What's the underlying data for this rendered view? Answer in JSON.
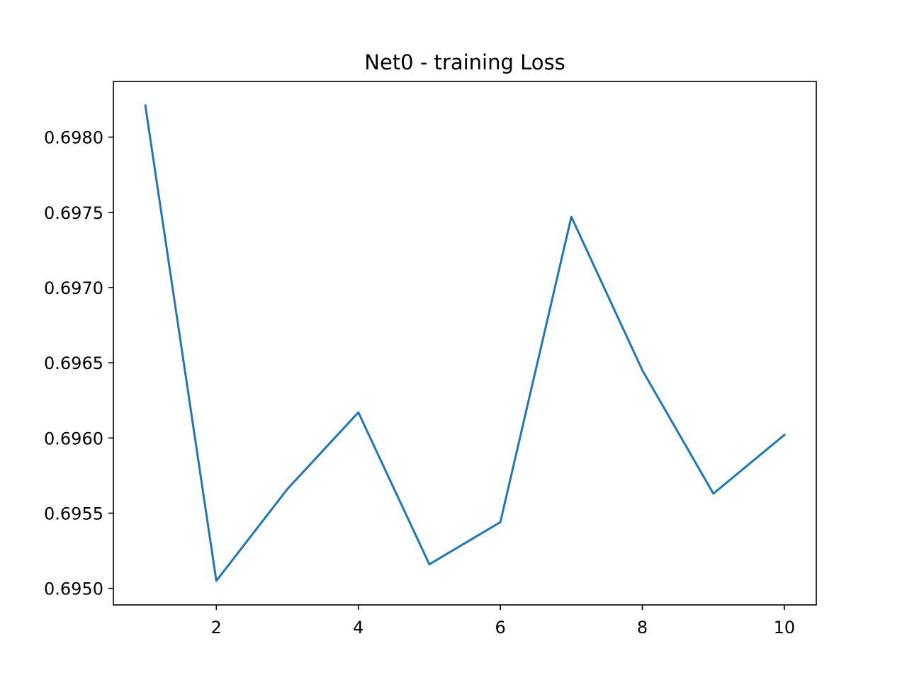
{
  "chart_data": {
    "type": "line",
    "title": "Net0 - training Loss",
    "xlabel": "",
    "ylabel": "",
    "xlim": [
      0.55,
      10.45
    ],
    "ylim": [
      0.69489,
      0.69837
    ],
    "x_ticks": [
      2,
      4,
      6,
      8,
      10
    ],
    "x_tick_labels": [
      "2",
      "4",
      "6",
      "8",
      "10"
    ],
    "y_ticks": [
      0.695,
      0.6955,
      0.696,
      0.6965,
      0.697,
      0.6975,
      0.698
    ],
    "y_tick_labels": [
      "0.6950",
      "0.6955",
      "0.6960",
      "0.6965",
      "0.6970",
      "0.6975",
      "0.6980"
    ],
    "grid": false,
    "series": [
      {
        "x": [
          1,
          2,
          3,
          4,
          5,
          6,
          7,
          8,
          9,
          10
        ],
        "values": [
          0.69821,
          0.69505,
          0.69566,
          0.69617,
          0.69516,
          0.69544,
          0.69747,
          0.69645,
          0.69563,
          0.69602
        ],
        "color": "#1f77b4"
      }
    ]
  }
}
